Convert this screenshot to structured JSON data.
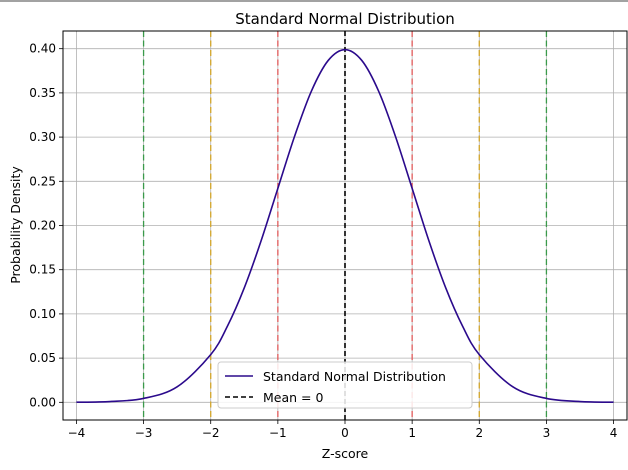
{
  "chart_data": {
    "type": "line",
    "title": "Standard Normal Distribution",
    "xlabel": "Z-score",
    "ylabel": "Probability Density",
    "xlim": [
      -4.2,
      4.2
    ],
    "ylim": [
      -0.02,
      0.42
    ],
    "x_ticks": [
      -4,
      -3,
      -2,
      -1,
      0,
      1,
      2,
      3,
      4
    ],
    "x_tick_labels": [
      "−4",
      "−3",
      "−2",
      "−1",
      "0",
      "1",
      "2",
      "3",
      "4"
    ],
    "y_ticks": [
      0.0,
      0.05,
      0.1,
      0.15,
      0.2,
      0.25,
      0.3,
      0.35,
      0.4
    ],
    "y_tick_labels": [
      "0.00",
      "0.05",
      "0.10",
      "0.15",
      "0.20",
      "0.25",
      "0.30",
      "0.35",
      "0.40"
    ],
    "grid": true,
    "series": [
      {
        "name": "Standard Normal Distribution",
        "color": "#2b0a8c",
        "x": [
          -4.0,
          -3.5,
          -3.0,
          -2.5,
          -2.0,
          -1.75,
          -1.5,
          -1.25,
          -1.0,
          -0.75,
          -0.5,
          -0.25,
          0.0,
          0.25,
          0.5,
          0.75,
          1.0,
          1.25,
          1.5,
          1.75,
          2.0,
          2.5,
          3.0,
          3.5,
          4.0
        ],
        "y": [
          0.0001,
          0.0009,
          0.0044,
          0.0175,
          0.054,
          0.0863,
          0.1295,
          0.1826,
          0.242,
          0.3011,
          0.3521,
          0.3867,
          0.3989,
          0.3867,
          0.3521,
          0.3011,
          0.242,
          0.1826,
          0.1295,
          0.0863,
          0.054,
          0.0175,
          0.0044,
          0.0009,
          0.0001
        ]
      }
    ],
    "vertical_lines": [
      {
        "x": 0,
        "color": "#000000",
        "label": "Mean = 0"
      },
      {
        "x": -1,
        "color": "#e05a5a"
      },
      {
        "x": 1,
        "color": "#e05a5a"
      },
      {
        "x": -2,
        "color": "#d4a62a"
      },
      {
        "x": 2,
        "color": "#d4a62a"
      },
      {
        "x": -3,
        "color": "#3a9a4a"
      },
      {
        "x": 3,
        "color": "#3a9a4a"
      }
    ],
    "legend": {
      "placement": "lower-center",
      "entries": [
        "Standard Normal Distribution",
        "Mean = 0"
      ]
    }
  }
}
